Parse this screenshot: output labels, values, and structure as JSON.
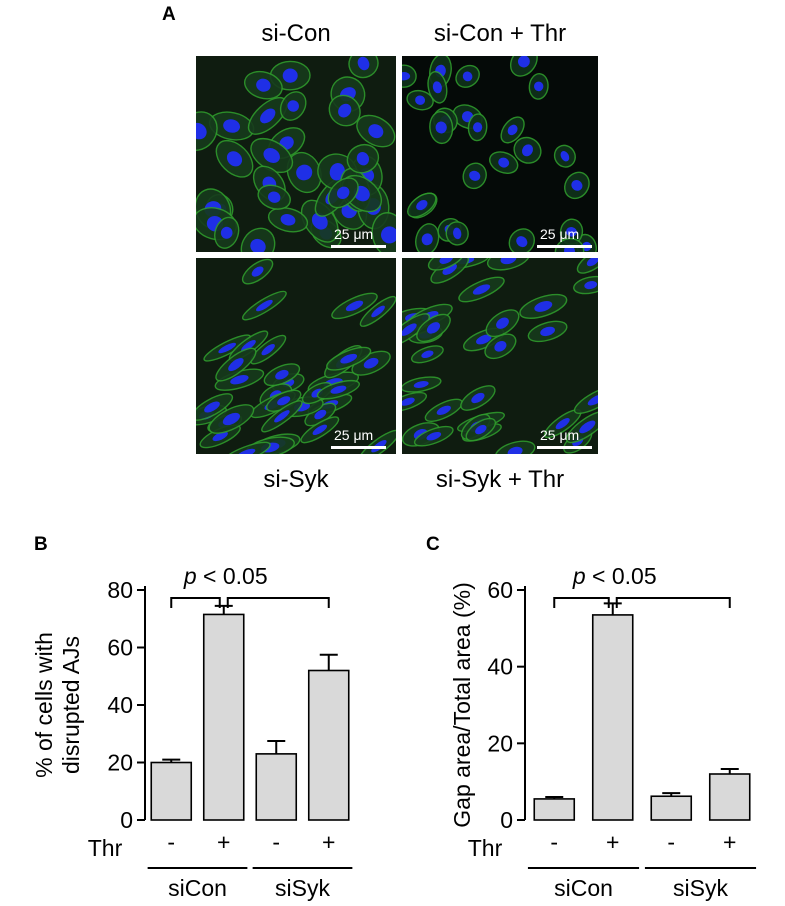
{
  "panel_a": {
    "label": "A",
    "titles_top": [
      "si-Con",
      "si-Con + Thr"
    ],
    "titles_bottom": [
      "si-Syk",
      "si-Syk + Thr"
    ],
    "scale_bar_label": "25 μm",
    "images": [
      {
        "condition": "si-Con",
        "appearance": "confluent monolayer, continuous green junctions, blue nuclei"
      },
      {
        "condition": "si-Con + Thr",
        "appearance": "cells retracted with large dark gaps between clusters"
      },
      {
        "condition": "si-Syk",
        "appearance": "elongated cells, continuous junctions, few gaps"
      },
      {
        "condition": "si-Syk + Thr",
        "appearance": "elongated cells, mostly intact junctions, small gaps"
      }
    ],
    "colors": {
      "junction": "#2f9a2c",
      "nuclei": "#1f2fe6",
      "background": "#0f1c10"
    }
  },
  "chart_data": [
    {
      "type": "bar",
      "panel_label": "B",
      "ylabel": "% of cells with disrupted AJs",
      "ylabel_lines": [
        "% of cells with",
        "disrupted AJs"
      ],
      "ylim": [
        0,
        80
      ],
      "yticks": [
        0,
        20,
        40,
        60,
        80
      ],
      "categories": [
        "-",
        "+",
        "-",
        "+"
      ],
      "row_label": "Thr",
      "groups": [
        "siCon",
        "siSyk"
      ],
      "values": [
        20,
        71.5,
        23,
        52
      ],
      "errors": [
        1,
        3,
        4.5,
        5.5
      ],
      "significance": "p < 0.05",
      "p_italic": "p",
      "p_rest": " < 0.05",
      "bar_color": "#d9d9d9"
    },
    {
      "type": "bar",
      "panel_label": "C",
      "ylabel": "Gap area/Total area (%)",
      "ylim": [
        0,
        60
      ],
      "yticks": [
        0,
        20,
        40,
        60
      ],
      "categories": [
        "-",
        "+",
        "-",
        "+"
      ],
      "row_label": "Thr",
      "groups": [
        "siCon",
        "siSyk"
      ],
      "values": [
        5.5,
        53.5,
        6.2,
        12
      ],
      "errors": [
        0.5,
        3,
        0.8,
        1.3
      ],
      "significance": "p < 0.05",
      "p_italic": "p",
      "p_rest": " < 0.05",
      "bar_color": "#d9d9d9"
    }
  ]
}
